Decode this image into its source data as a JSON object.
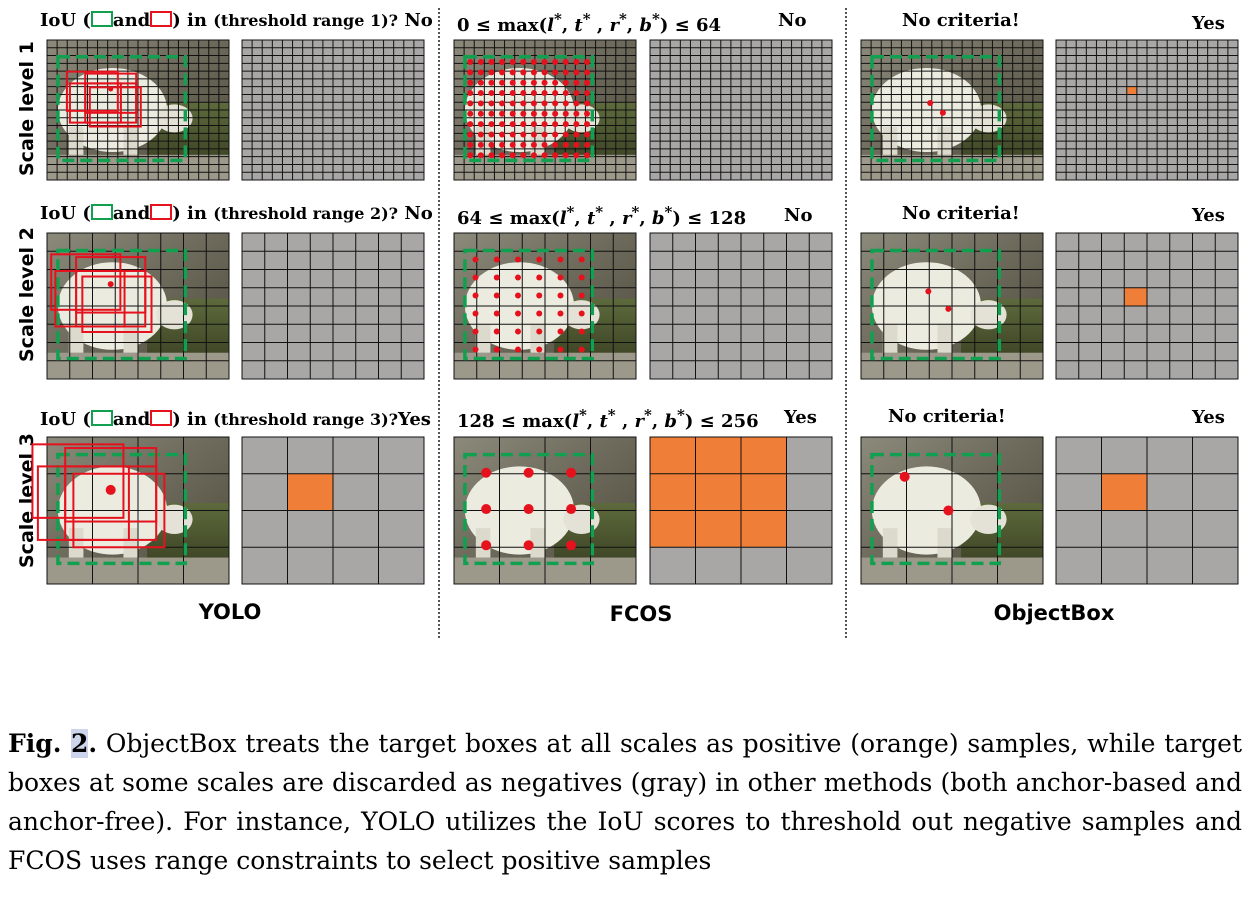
{
  "colors": {
    "positive": "#ef7e38",
    "negative": "#a9a7a6",
    "gt_box": "#10a050",
    "anchor": "#e5121e",
    "gridline": "#111111"
  },
  "row_labels": [
    "Scale level 1",
    "Scale level 2",
    "Scale level 3"
  ],
  "method_labels": [
    "YOLO",
    "FCOS",
    "ObjectBox"
  ],
  "yolo": {
    "rows": [
      {
        "pre": "IoU (",
        "and": "and",
        "in": ") in",
        "range": "(threshold range 1)?",
        "answer": "No"
      },
      {
        "pre": "IoU (",
        "and": "and",
        "in": ") in",
        "range": "(threshold range 2)?",
        "answer": "No"
      },
      {
        "pre": "IoU (",
        "and": "and",
        "in": ") in",
        "range": "(threshold range 3)?",
        "answer": "Yes"
      }
    ]
  },
  "fcos": {
    "rows": [
      {
        "low": "0",
        "high": "64",
        "answer": "No"
      },
      {
        "low": "64",
        "high": "128",
        "answer": "No"
      },
      {
        "low": "128",
        "high": "256",
        "answer": "Yes"
      }
    ],
    "le": "≤",
    "max_text": "max(",
    "close": ")",
    "sep": ",",
    "vars": [
      "l",
      "t",
      "r",
      "b"
    ],
    "star": "*"
  },
  "objectbox": {
    "rows": [
      {
        "label": "No criteria!",
        "answer": "Yes"
      },
      {
        "label": "No criteria!",
        "answer": "Yes"
      },
      {
        "label": "No criteria!",
        "answer": "Yes"
      }
    ]
  },
  "grids": {
    "yolo": [
      {
        "n": 18,
        "positive": []
      },
      {
        "n": 8,
        "positive": []
      },
      {
        "n": 4,
        "positive": [
          [
            1,
            1
          ]
        ]
      }
    ],
    "fcos": [
      {
        "n": 18,
        "positive": []
      },
      {
        "n": 8,
        "positive": []
      },
      {
        "n": 4,
        "positive": [
          [
            0,
            0
          ],
          [
            1,
            0
          ],
          [
            2,
            0
          ],
          [
            0,
            1
          ],
          [
            1,
            1
          ],
          [
            2,
            1
          ],
          [
            0,
            2
          ],
          [
            1,
            2
          ],
          [
            2,
            2
          ]
        ]
      }
    ],
    "objectbox": [
      {
        "n": 18,
        "positive": [
          [
            7,
            6
          ]
        ]
      },
      {
        "n": 8,
        "positive": [
          [
            3,
            3
          ]
        ]
      },
      {
        "n": 4,
        "positive": [
          [
            1,
            1
          ]
        ]
      }
    ]
  },
  "caption": {
    "fig_label": "Fig.",
    "fig_number": "2",
    "fig_dot": ".",
    "text": " ObjectBox treats the target boxes at all scales as positive (orange) samples, while target boxes at some scales are discarded as negatives (gray) in other methods (both anchor-based and anchor-free). For instance, YOLO utilizes the IoU scores to threshold out negative samples and FCOS uses range constraints to select positive samples"
  }
}
